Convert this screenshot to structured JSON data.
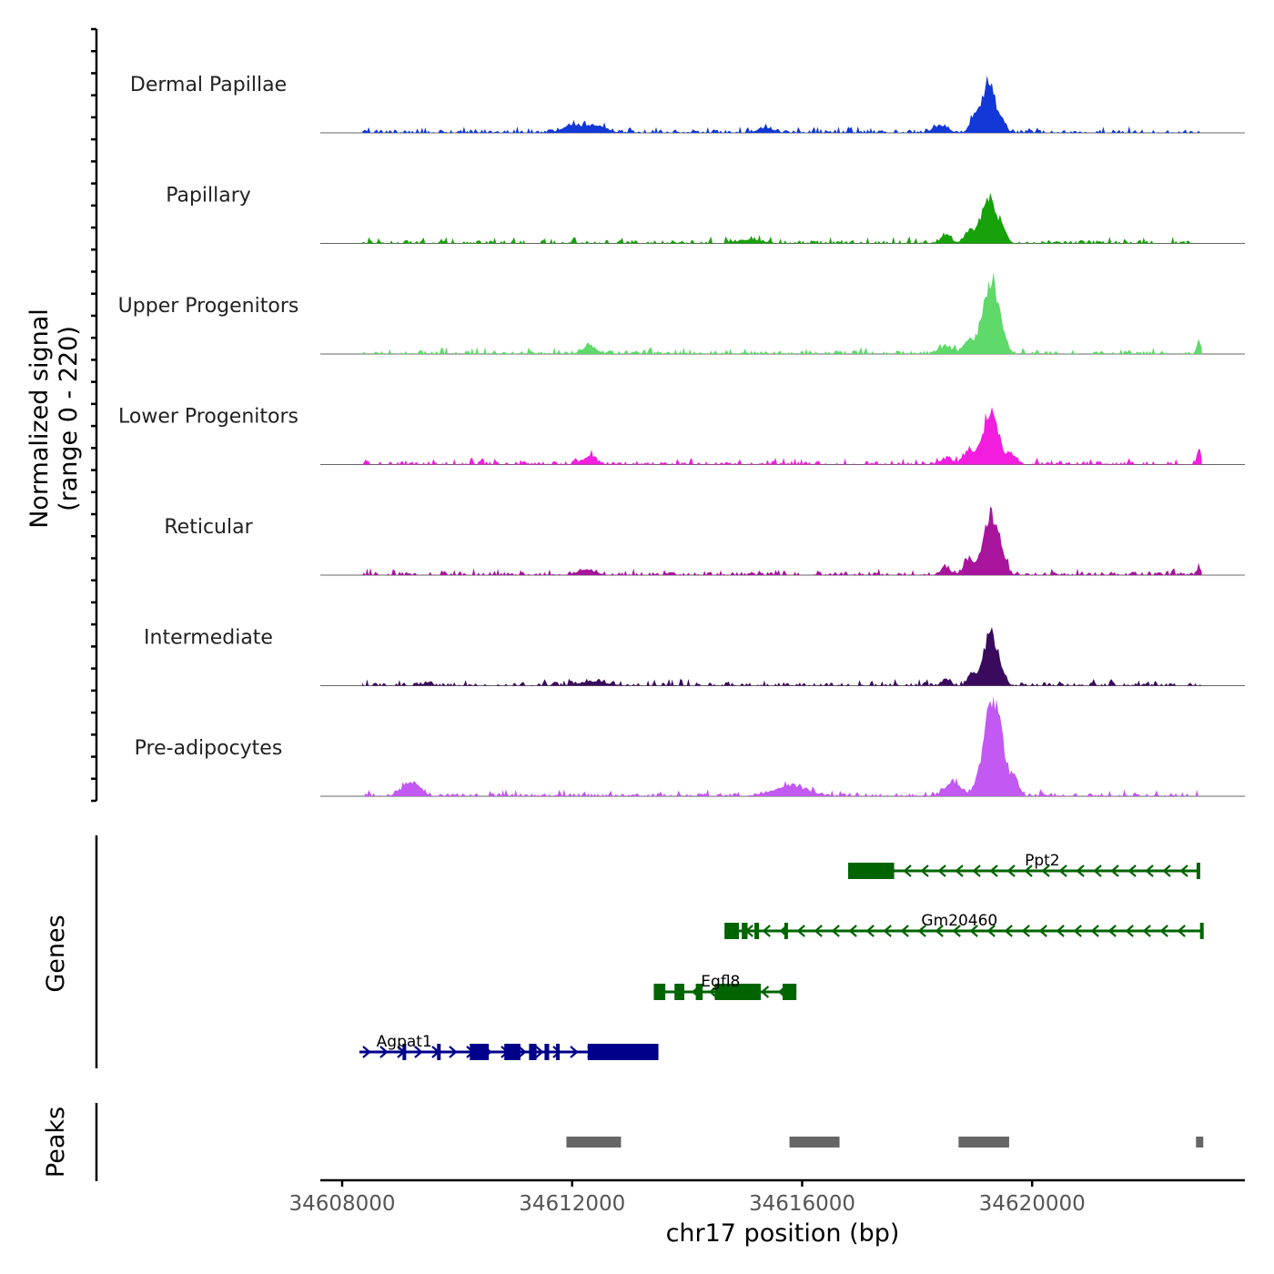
{
  "chart_data": {
    "type": "coverage-track",
    "xlabel": "chr17 position (bp)",
    "ylabel_line1": "Normalized signal",
    "ylabel_line2": "(range 0 - 220)",
    "y_range": [
      0,
      220
    ],
    "x_range": [
      34607620,
      34623700
    ],
    "x_ticks": [
      {
        "value": 34608000,
        "label": "34608000"
      },
      {
        "value": 34612000,
        "label": "34612000"
      },
      {
        "value": 34616000,
        "label": "34616000"
      },
      {
        "value": 34620000,
        "label": "34620000"
      }
    ],
    "coverage_tracks": [
      {
        "name": "Dermal Papillae",
        "color": "#1238d8",
        "peaks": [
          [
            34611950,
            0.06,
            150
          ],
          [
            34612350,
            0.08,
            200
          ],
          [
            34615350,
            0.05,
            120
          ],
          [
            34618400,
            0.07,
            130
          ],
          [
            34619000,
            0.16,
            80
          ],
          [
            34619250,
            0.52,
            110
          ],
          [
            34619500,
            0.08,
            60
          ]
        ]
      },
      {
        "name": "Papillary",
        "color": "#17a10a",
        "peaks": [
          [
            34615100,
            0.04,
            200
          ],
          [
            34618500,
            0.08,
            90
          ],
          [
            34618900,
            0.1,
            90
          ],
          [
            34619250,
            0.45,
            140
          ],
          [
            34619500,
            0.08,
            70
          ]
        ]
      },
      {
        "name": "Upper Progenitors",
        "color": "#5ed96a",
        "peaks": [
          [
            34612300,
            0.08,
            120
          ],
          [
            34618500,
            0.08,
            100
          ],
          [
            34618900,
            0.12,
            100
          ],
          [
            34619280,
            0.72,
            130
          ],
          [
            34619500,
            0.1,
            70
          ],
          [
            34622900,
            0.12,
            40
          ]
        ]
      },
      {
        "name": "Lower Progenitors",
        "color": "#f21ddf",
        "peaks": [
          [
            34612300,
            0.08,
            120
          ],
          [
            34618500,
            0.06,
            100
          ],
          [
            34618900,
            0.14,
            100
          ],
          [
            34619280,
            0.55,
            130
          ],
          [
            34619650,
            0.1,
            80
          ],
          [
            34622900,
            0.12,
            40
          ]
        ]
      },
      {
        "name": "Reticular",
        "color": "#a8159c",
        "peaks": [
          [
            34612250,
            0.06,
            150
          ],
          [
            34618500,
            0.07,
            90
          ],
          [
            34618900,
            0.14,
            90
          ],
          [
            34619280,
            0.6,
            130
          ],
          [
            34619500,
            0.1,
            70
          ],
          [
            34622900,
            0.08,
            40
          ]
        ]
      },
      {
        "name": "Intermediate",
        "color": "#3a0a5c",
        "peaks": [
          [
            34612350,
            0.04,
            250
          ],
          [
            34618500,
            0.07,
            70
          ],
          [
            34618950,
            0.12,
            70
          ],
          [
            34619280,
            0.52,
            120
          ],
          [
            34619500,
            0.06,
            60
          ]
        ]
      },
      {
        "name": "Pre-adipocytes",
        "color": "#c159f2",
        "peaks": [
          [
            34609200,
            0.14,
            150
          ],
          [
            34615800,
            0.1,
            300
          ],
          [
            34618600,
            0.14,
            120
          ],
          [
            34619320,
            0.95,
            160
          ],
          [
            34619700,
            0.18,
            60
          ]
        ]
      }
    ],
    "genes_label": "Genes",
    "genes": [
      {
        "name": "Ppt2",
        "strand": "-",
        "color": "#006400",
        "start": 34616800,
        "end": 34622920,
        "exons": [
          [
            34616800,
            34617600
          ],
          [
            34622860,
            34622920
          ]
        ]
      },
      {
        "name": "Gm20460",
        "strand": "-",
        "color": "#006400",
        "start": 34614650,
        "end": 34622980,
        "exons": [
          [
            34614650,
            34614900
          ],
          [
            34614950,
            34615050
          ],
          [
            34615170,
            34615250
          ],
          [
            34615690,
            34615740
          ],
          [
            34622920,
            34622980
          ]
        ]
      },
      {
        "name": "Egfl8",
        "strand": "-",
        "color": "#006400",
        "start": 34613420,
        "end": 34615900,
        "exons": [
          [
            34613420,
            34613620
          ],
          [
            34613780,
            34613950
          ],
          [
            34614150,
            34614270
          ],
          [
            34614480,
            34615280
          ],
          [
            34615660,
            34615900
          ]
        ]
      },
      {
        "name": "Agpat1",
        "strand": "+",
        "color": "#00008b",
        "start": 34608300,
        "end": 34613500,
        "exons": [
          [
            34609050,
            34609090
          ],
          [
            34609650,
            34609690
          ],
          [
            34610220,
            34610550
          ],
          [
            34610820,
            34611100
          ],
          [
            34611250,
            34611380
          ],
          [
            34611520,
            34611600
          ],
          [
            34611720,
            34611780
          ],
          [
            34612270,
            34613500
          ]
        ]
      }
    ],
    "peaks_label": "Peaks",
    "peak_regions": [
      [
        34611900,
        34612850
      ],
      [
        34615780,
        34616650
      ],
      [
        34618720,
        34619600
      ],
      [
        34622850,
        34622970
      ]
    ]
  }
}
